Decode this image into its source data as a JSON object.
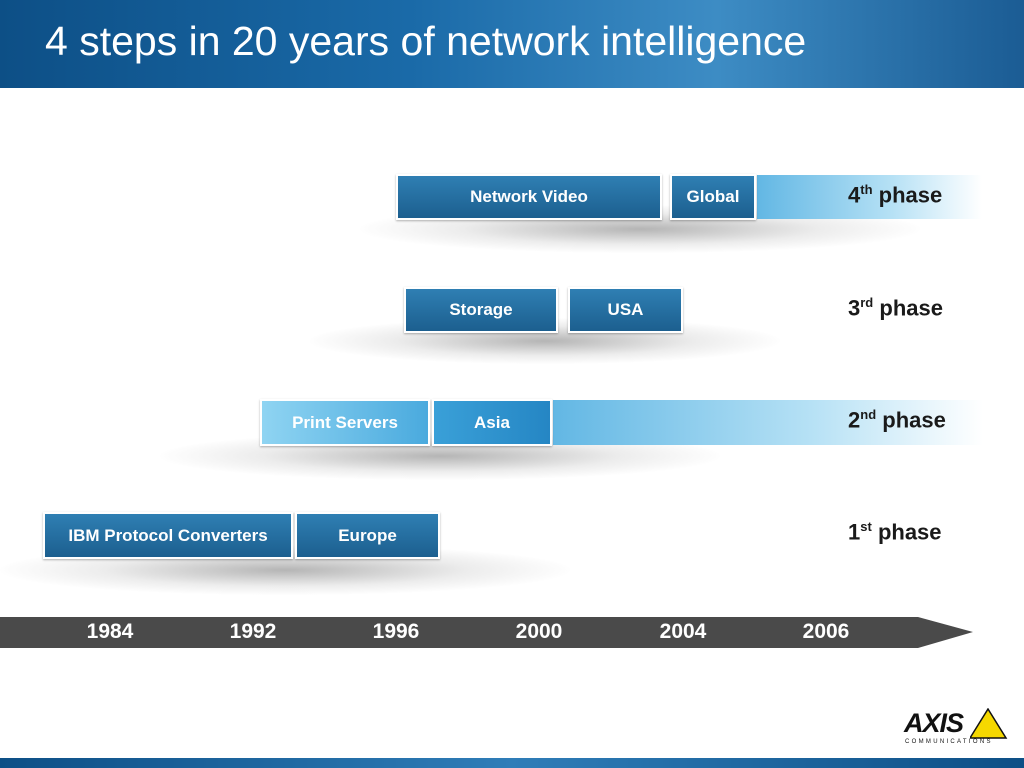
{
  "title": "4 steps in 20 years of network intelligence",
  "phases": [
    {
      "number": "4",
      "suffix": "th",
      "word": "phase",
      "boxes": [
        "Network Video",
        "Global"
      ]
    },
    {
      "number": "3",
      "suffix": "rd",
      "word": "phase",
      "boxes": [
        "Storage",
        "USA"
      ]
    },
    {
      "number": "2",
      "suffix": "nd",
      "word": "phase",
      "boxes": [
        "Print Servers",
        "Asia"
      ]
    },
    {
      "number": "1",
      "suffix": "st",
      "word": "phase",
      "boxes": [
        "IBM Protocol Converters",
        "Europe"
      ]
    }
  ],
  "timeline": [
    "1984",
    "1992",
    "1996",
    "2000",
    "2004",
    "2006"
  ],
  "logo": {
    "name": "AXIS",
    "tagline": "COMMUNICATIONS"
  }
}
